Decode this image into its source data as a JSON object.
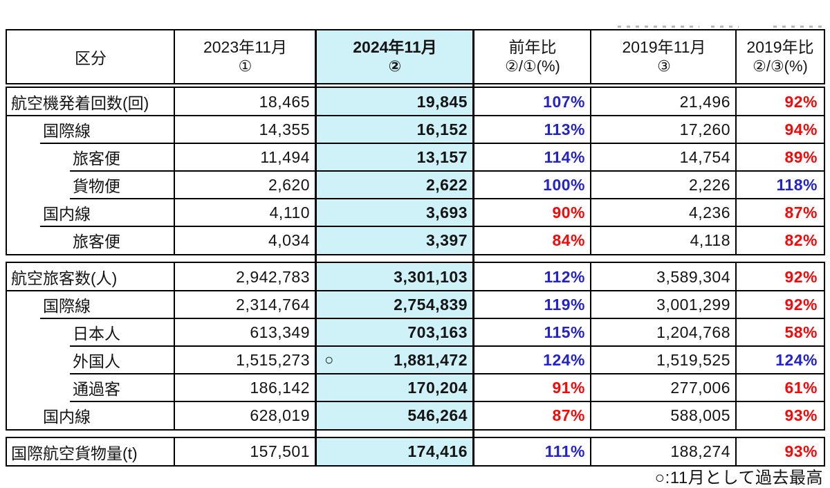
{
  "colors": {
    "highlight_fill": "#CEF2F8",
    "up_blue": "#2323CE",
    "down_red": "#F50808",
    "border": "#000000"
  },
  "header": {
    "category_label": "区分",
    "columns": [
      {
        "line1": "2023年11月",
        "line2": "①"
      },
      {
        "line1": "2024年11月",
        "line2": "②"
      },
      {
        "line1": "前年比",
        "line2": "②/①(%)"
      },
      {
        "line1": "2019年11月",
        "line2": "③"
      },
      {
        "line1": "2019年比",
        "line2": "②/③(%)"
      }
    ]
  },
  "blocks": [
    {
      "name": "航空機発着回数",
      "rows": [
        {
          "label": "航空機発着回数(回)",
          "indent": 0,
          "sep": null,
          "v2023": "18,465",
          "mark": "",
          "v2024": "19,845",
          "yoy": "107%",
          "yoy_color": "blue",
          "v2019": "21,496",
          "ratio2019": "92%",
          "ratio2019_color": "red"
        },
        {
          "label": "国際線",
          "indent": 1,
          "sep": 0,
          "v2023": "14,355",
          "mark": "",
          "v2024": "16,152",
          "yoy": "113%",
          "yoy_color": "blue",
          "v2019": "17,260",
          "ratio2019": "94%",
          "ratio2019_color": "red"
        },
        {
          "label": "旅客便",
          "indent": 2,
          "sep": 48,
          "v2023": "11,494",
          "mark": "",
          "v2024": "13,157",
          "yoy": "114%",
          "yoy_color": "blue",
          "v2019": "14,754",
          "ratio2019": "89%",
          "ratio2019_color": "red"
        },
        {
          "label": "貨物便",
          "indent": 2,
          "sep": 91,
          "v2023": "2,620",
          "mark": "",
          "v2024": "2,622",
          "yoy": "100%",
          "yoy_color": "blue",
          "v2019": "2,226",
          "ratio2019": "118%",
          "ratio2019_color": "blue"
        },
        {
          "label": "国内線",
          "indent": 1,
          "sep": 91,
          "v2023": "4,110",
          "mark": "",
          "v2024": "3,693",
          "yoy": "90%",
          "yoy_color": "red",
          "v2019": "4,236",
          "ratio2019": "87%",
          "ratio2019_color": "red"
        },
        {
          "label": "旅客便",
          "indent": 2,
          "sep": 48,
          "v2023": "4,034",
          "mark": "",
          "v2024": "3,397",
          "yoy": "84%",
          "yoy_color": "red",
          "v2019": "4,118",
          "ratio2019": "82%",
          "ratio2019_color": "red"
        }
      ]
    },
    {
      "name": "航空旅客数",
      "rows": [
        {
          "label": "航空旅客数(人)",
          "indent": 0,
          "sep": null,
          "v2023": "2,942,783",
          "mark": "",
          "v2024": "3,301,103",
          "yoy": "112%",
          "yoy_color": "blue",
          "v2019": "3,589,304",
          "ratio2019": "92%",
          "ratio2019_color": "red"
        },
        {
          "label": "国際線",
          "indent": 1,
          "sep": 0,
          "v2023": "2,314,764",
          "mark": "",
          "v2024": "2,754,839",
          "yoy": "119%",
          "yoy_color": "blue",
          "v2019": "3,001,299",
          "ratio2019": "92%",
          "ratio2019_color": "red"
        },
        {
          "label": "日本人",
          "indent": 2,
          "sep": 48,
          "v2023": "613,349",
          "mark": "",
          "v2024": "703,163",
          "yoy": "115%",
          "yoy_color": "blue",
          "v2019": "1,204,768",
          "ratio2019": "58%",
          "ratio2019_color": "red"
        },
        {
          "label": "外国人",
          "indent": 2,
          "sep": 91,
          "v2023": "1,515,273",
          "mark": "○",
          "v2024": "1,881,472",
          "yoy": "124%",
          "yoy_color": "blue",
          "v2019": "1,519,525",
          "ratio2019": "124%",
          "ratio2019_color": "blue"
        },
        {
          "label": "通過客",
          "indent": 2,
          "sep": 91,
          "v2023": "186,142",
          "mark": "",
          "v2024": "170,204",
          "yoy": "91%",
          "yoy_color": "red",
          "v2019": "277,006",
          "ratio2019": "61%",
          "ratio2019_color": "red"
        },
        {
          "label": "国内線",
          "indent": 1,
          "sep": 91,
          "v2023": "628,019",
          "mark": "",
          "v2024": "546,264",
          "yoy": "87%",
          "yoy_color": "red",
          "v2019": "588,005",
          "ratio2019": "93%",
          "ratio2019_color": "red"
        }
      ]
    },
    {
      "name": "国際航空貨物量",
      "rows": [
        {
          "label": "国際航空貨物量(t)",
          "indent": 0,
          "sep": null,
          "v2023": "157,501",
          "mark": "",
          "v2024": "174,416",
          "yoy": "111%",
          "yoy_color": "blue",
          "v2019": "188,274",
          "ratio2019": "93%",
          "ratio2019_color": "red"
        }
      ]
    }
  ],
  "footer_note": "○:11月として過去最高",
  "chart_data": {
    "type": "table",
    "title": "",
    "columns": [
      "区分",
      "2023年11月 ①",
      "2024年11月 ②",
      "前年比 ②/①(%)",
      "2019年11月 ③",
      "2019年比 ②/③(%)"
    ],
    "rows": [
      [
        "航空機発着回数(回)",
        18465,
        19845,
        107,
        21496,
        92
      ],
      [
        "国際線",
        14355,
        16152,
        113,
        17260,
        94
      ],
      [
        "旅客便",
        11494,
        13157,
        114,
        14754,
        89
      ],
      [
        "貨物便",
        2620,
        2622,
        100,
        2226,
        118
      ],
      [
        "国内線",
        4110,
        3693,
        90,
        4236,
        87
      ],
      [
        "旅客便",
        4034,
        3397,
        84,
        4118,
        82
      ],
      [
        "航空旅客数(人)",
        2942783,
        3301103,
        112,
        3589304,
        92
      ],
      [
        "国際線",
        2314764,
        2754839,
        119,
        3001299,
        92
      ],
      [
        "日本人",
        613349,
        703163,
        115,
        1204768,
        58
      ],
      [
        "外国人",
        1515273,
        1881472,
        124,
        1519525,
        124
      ],
      [
        "通過客",
        186142,
        170204,
        91,
        277006,
        61
      ],
      [
        "国内線",
        628019,
        546264,
        87,
        588005,
        93
      ],
      [
        "国際航空貨物量(t)",
        157501,
        174416,
        111,
        188274,
        93
      ]
    ],
    "notes": "○ = 11月として過去最高 (record high for November); 2024年11月 column highlighted; ratios ≥100% blue, <100% red"
  }
}
